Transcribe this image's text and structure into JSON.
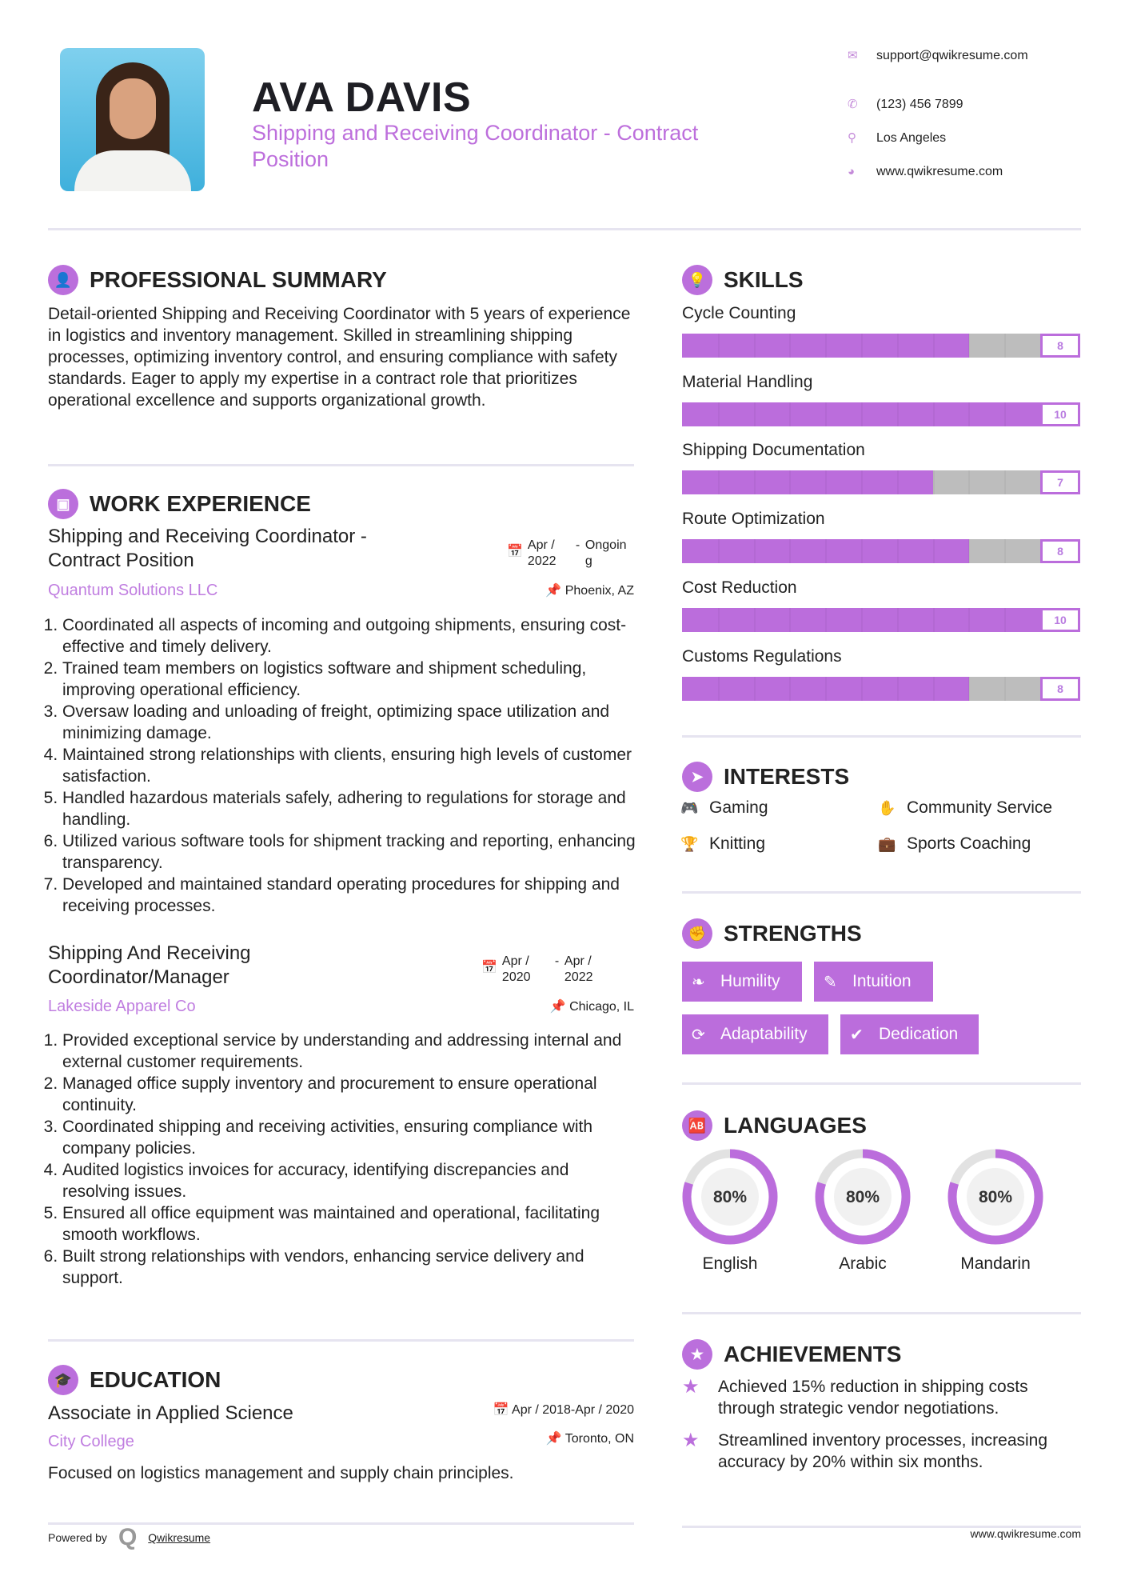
{
  "header": {
    "name": "AVA DAVIS",
    "title": "Shipping and Receiving Coordinator - Contract Position",
    "contacts": [
      {
        "icon": "envelope-icon",
        "text": "support@qwikresume.com"
      },
      {
        "icon": "phone-icon",
        "text": "(123) 456 7899"
      },
      {
        "icon": "map-marker-icon",
        "text": "Los Angeles"
      },
      {
        "icon": "globe-icon",
        "text": "www.qwikresume.com"
      }
    ]
  },
  "summary": {
    "title": "PROFESSIONAL SUMMARY",
    "text": "Detail-oriented Shipping and Receiving Coordinator with 5 years of experience in logistics and inventory management. Skilled in streamlining shipping processes, optimizing inventory control, and ensuring compliance with safety standards. Eager to apply my expertise in a contract role that prioritizes operational excellence and supports organizational growth."
  },
  "experience": {
    "title": "WORK EXPERIENCE",
    "jobs": [
      {
        "title": "Shipping and Receiving Coordinator - Contract Position",
        "company": "Quantum Solutions LLC",
        "start": "Apr / 2022",
        "end": "Ongoing",
        "location": "Phoenix, AZ",
        "items": [
          "Coordinated all aspects of incoming and outgoing shipments, ensuring cost-effective and timely delivery.",
          "Trained team members on logistics software and shipment scheduling, improving operational efficiency.",
          "Oversaw loading and unloading of freight, optimizing space utilization and minimizing damage.",
          "Maintained strong relationships with clients, ensuring high levels of customer satisfaction.",
          "Handled hazardous materials safely, adhering to regulations for storage and handling.",
          "Utilized various software tools for shipment tracking and reporting, enhancing transparency.",
          "Developed and maintained standard operating procedures for shipping and receiving processes."
        ]
      },
      {
        "title": "Shipping And Receiving Coordinator/Manager",
        "company": "Lakeside Apparel Co",
        "start": "Apr / 2020",
        "end": "Apr / 2022",
        "location": "Chicago, IL",
        "items": [
          "Provided exceptional service by understanding and addressing internal and external customer requirements.",
          "Managed office supply inventory and procurement to ensure operational continuity.",
          "Coordinated shipping and receiving activities, ensuring compliance with company policies.",
          "Audited logistics invoices for accuracy, identifying discrepancies and resolving issues.",
          "Ensured all office equipment was maintained and operational, facilitating smooth workflows.",
          "Built strong relationships with vendors, enhancing service delivery and support."
        ]
      }
    ]
  },
  "education": {
    "title": "EDUCATION",
    "degree": "Associate in Applied Science",
    "school": "City College",
    "dates": "Apr / 2018-Apr / 2020",
    "location": "Toronto, ON",
    "description": "Focused on logistics management and supply chain principles."
  },
  "skills": {
    "title": "SKILLS",
    "max": 10,
    "items": [
      {
        "name": "Cycle Counting",
        "value": 8
      },
      {
        "name": "Material Handling",
        "value": 10
      },
      {
        "name": "Shipping Documentation",
        "value": 7
      },
      {
        "name": "Route Optimization",
        "value": 8
      },
      {
        "name": "Cost Reduction",
        "value": 10
      },
      {
        "name": "Customs Regulations",
        "value": 8
      }
    ]
  },
  "interests": {
    "title": "INTERESTS",
    "items": [
      {
        "icon": "gamepad-icon",
        "label": "Gaming"
      },
      {
        "icon": "hand-icon",
        "label": "Community Service"
      },
      {
        "icon": "trophy-icon",
        "label": "Knitting"
      },
      {
        "icon": "briefcase-icon",
        "label": "Sports Coaching"
      }
    ]
  },
  "strengths": {
    "title": "STRENGTHS",
    "items": [
      {
        "icon": "feather-icon",
        "label": "Humility"
      },
      {
        "icon": "magic-wand-icon",
        "label": "Intuition"
      },
      {
        "icon": "refresh-icon",
        "label": "Adaptability"
      },
      {
        "icon": "check-circle-icon",
        "label": "Dedication"
      }
    ]
  },
  "languages": {
    "title": "LANGUAGES",
    "items": [
      {
        "name": "English",
        "percent": 80,
        "label": "80%"
      },
      {
        "name": "Arabic",
        "percent": 80,
        "label": "80%"
      },
      {
        "name": "Mandarin",
        "percent": 80,
        "label": "80%"
      }
    ]
  },
  "achievements": {
    "title": "ACHIEVEMENTS",
    "items": [
      "Achieved 15% reduction in shipping costs through strategic vendor negotiations.",
      "Streamlined inventory processes, increasing accuracy by 20% within six months."
    ]
  },
  "footer": {
    "powered_by": "Powered by",
    "brand": "Qwikresume",
    "website": "www.qwikresume.com"
  },
  "colors": {
    "accent": "#bb6ddc",
    "bar_empty": "#bdbdbd",
    "text": "#222222"
  }
}
